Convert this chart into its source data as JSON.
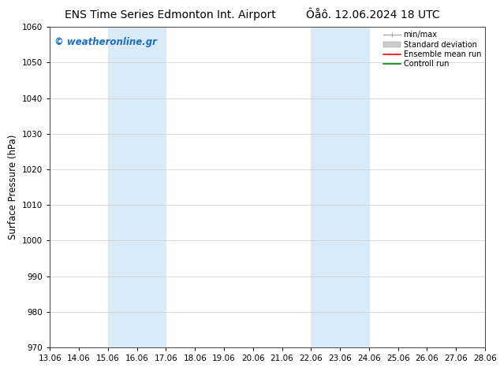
{
  "title_left": "ENS Time Series Edmonton Int. Airport",
  "title_right": "Ôåô. 12.06.2024 18 UTC",
  "ylabel": "Surface Pressure (hPa)",
  "ylim": [
    970,
    1060
  ],
  "yticks": [
    970,
    980,
    990,
    1000,
    1010,
    1020,
    1030,
    1040,
    1050,
    1060
  ],
  "xlabel_dates": [
    "13.06",
    "14.06",
    "15.06",
    "16.06",
    "17.06",
    "18.06",
    "19.06",
    "20.06",
    "21.06",
    "22.06",
    "23.06",
    "24.06",
    "25.06",
    "26.06",
    "27.06",
    "28.06"
  ],
  "shaded_bands": [
    {
      "xstart": 2,
      "xend": 4,
      "color": "#daeaf7"
    },
    {
      "xstart": 9,
      "xend": 11,
      "color": "#daeaf7"
    }
  ],
  "watermark": "© weatheronline.gr",
  "watermark_color": "#1a6fc4",
  "legend_items": [
    {
      "label": "min/max",
      "color": "#aaaaaa",
      "lw": 1.0
    },
    {
      "label": "Standard deviation",
      "color": "#cccccc",
      "lw": 6
    },
    {
      "label": "Ensemble mean run",
      "color": "red",
      "lw": 1.2
    },
    {
      "label": "Controll run",
      "color": "green",
      "lw": 1.2
    }
  ],
  "background_color": "#ffffff",
  "grid_color": "#cccccc",
  "title_fontsize": 10,
  "tick_fontsize": 7.5,
  "ylabel_fontsize": 8.5
}
